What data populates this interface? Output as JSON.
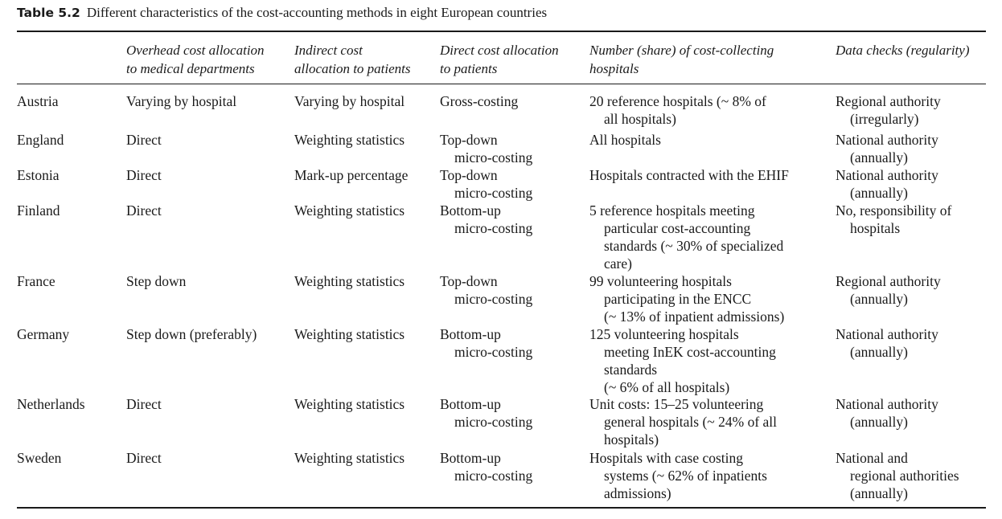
{
  "table": {
    "label": "Table 5.2",
    "caption": "Different characteristics of the cost-accounting methods in eight European countries",
    "headers": [
      "",
      "Overhead cost allocation\nto medical departments",
      "Indirect cost\nallocation to patients",
      "Direct cost allocation\nto patients",
      "Number (share) of cost-collecting\nhospitals",
      "Data checks (regularity)"
    ],
    "rows": [
      [
        "Austria",
        "Varying by hospital",
        "Varying by hospital",
        "Gross-costing",
        "20 reference hospitals (~ 8% of\nall hospitals)",
        "Regional authority\n(irregularly)"
      ],
      [
        "England",
        "Direct",
        "Weighting statistics",
        "Top-down\nmicro-costing",
        "All hospitals",
        "National authority\n(annually)"
      ],
      [
        "Estonia",
        "Direct",
        "Mark-up percentage",
        "Top-down\nmicro-costing",
        "Hospitals contracted with the EHIF",
        "National authority\n(annually)"
      ],
      [
        "Finland",
        "Direct",
        "Weighting statistics",
        "Bottom-up\nmicro-costing",
        "5 reference hospitals meeting\nparticular cost-accounting\nstandards (~ 30% of specialized\ncare)",
        "No, responsibility of\nhospitals"
      ],
      [
        "France",
        "Step down",
        "Weighting statistics",
        "Top-down\nmicro-costing",
        "99 volunteering hospitals\nparticipating in the ENCC\n(~ 13% of inpatient admissions)",
        "Regional authority\n(annually)"
      ],
      [
        "Germany",
        "Step down (preferably)",
        "Weighting statistics",
        "Bottom-up\nmicro-costing",
        "125 volunteering hospitals\nmeeting InEK cost-accounting\nstandards\n(~ 6% of all hospitals)",
        "National authority\n(annually)"
      ],
      [
        "Netherlands",
        "Direct",
        "Weighting statistics",
        "Bottom-up\nmicro-costing",
        "Unit costs: 15–25 volunteering\ngeneral hospitals (~ 24% of all\nhospitals)",
        "National authority\n(annually)"
      ],
      [
        "Sweden",
        "Direct",
        "Weighting statistics",
        "Bottom-up\nmicro-costing",
        "Hospitals with case costing\nsystems (~ 62% of inpatients\nadmissions)",
        "National and\nregional authorities\n(annually)"
      ]
    ]
  }
}
